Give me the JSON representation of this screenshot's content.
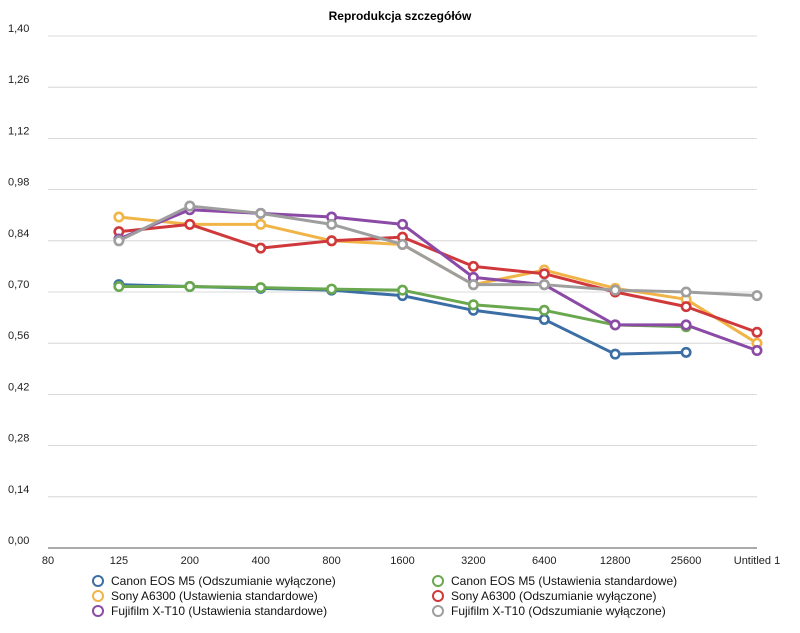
{
  "chart_data": {
    "type": "line",
    "title": "Reprodukcja szczegółów",
    "xlabel": "",
    "ylabel": "",
    "categories": [
      "80",
      "125",
      "200",
      "400",
      "800",
      "1600",
      "3200",
      "6400",
      "12800",
      "25600",
      "Untitled 1"
    ],
    "y_ticks": [
      "0,00",
      "0,14",
      "0,28",
      "0,42",
      "0,56",
      "0,70",
      "0,84",
      "0,98",
      "1,12",
      "1,26",
      "1,40"
    ],
    "ylim": [
      0,
      1.4
    ],
    "grid": true,
    "legend_position": "bottom",
    "series": [
      {
        "name": "Canon EOS M5 (Odszumianie wyłączone)",
        "color": "#3b6ea5",
        "values": [
          null,
          0.72,
          0.715,
          0.71,
          0.705,
          0.69,
          0.65,
          0.625,
          0.53,
          0.535,
          null
        ]
      },
      {
        "name": "Canon EOS M5 (Ustawienia standardowe)",
        "color": "#6aa84f",
        "values": [
          null,
          0.715,
          0.715,
          0.712,
          0.708,
          0.705,
          0.665,
          0.65,
          0.61,
          0.605,
          null
        ]
      },
      {
        "name": "Sony A6300 (Ustawienia standardowe)",
        "color": "#f1b447",
        "values": [
          null,
          0.905,
          0.885,
          0.885,
          0.84,
          0.83,
          0.72,
          0.76,
          0.71,
          0.68,
          0.56
        ]
      },
      {
        "name": "Sony A6300 (Odszumianie wyłączone)",
        "color": "#d0393b",
        "values": [
          null,
          0.865,
          0.885,
          0.82,
          0.84,
          0.85,
          0.77,
          0.75,
          0.7,
          0.66,
          0.59
        ]
      },
      {
        "name": "Fujifilm X-T10 (Ustawienia standardowe)",
        "color": "#8b4aa5",
        "values": [
          null,
          0.845,
          0.925,
          0.915,
          0.905,
          0.885,
          0.74,
          0.72,
          0.61,
          0.61,
          0.54
        ]
      },
      {
        "name": "Fujifilm X-T10 (Odszumianie wyłączone)",
        "color": "#9e9e9e",
        "values": [
          null,
          0.84,
          0.935,
          0.915,
          0.885,
          0.83,
          0.72,
          0.72,
          0.705,
          0.7,
          0.69
        ]
      }
    ]
  }
}
